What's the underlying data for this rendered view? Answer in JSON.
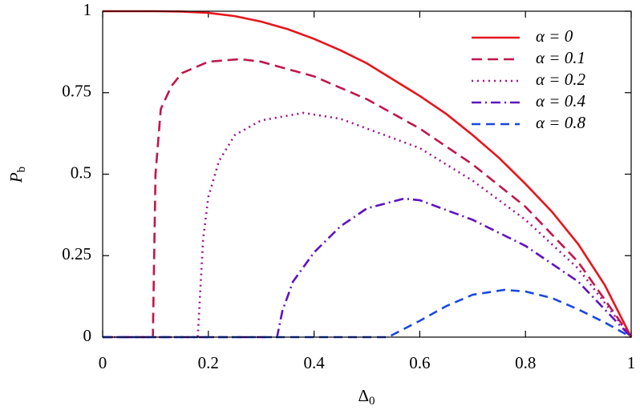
{
  "chart_data": {
    "type": "line",
    "xlabel": {
      "base": "Δ",
      "subscript": "0"
    },
    "ylabel": {
      "base": "P",
      "subscript": "b"
    },
    "xlim": [
      0,
      1
    ],
    "ylim": [
      0,
      1
    ],
    "xticks": [
      0,
      0.2,
      0.4,
      0.6,
      0.8,
      1
    ],
    "yticks": [
      0,
      0.25,
      0.5,
      0.75,
      1
    ],
    "legend": "top-right",
    "series": [
      {
        "name": "α = 0",
        "color": "#e8141c",
        "dash": "solid",
        "x": [
          0,
          0.05,
          0.1,
          0.15,
          0.2,
          0.25,
          0.3,
          0.35,
          0.4,
          0.45,
          0.5,
          0.55,
          0.6,
          0.65,
          0.7,
          0.75,
          0.8,
          0.85,
          0.9,
          0.95,
          1
        ],
        "values": [
          1,
          1,
          1,
          0.999,
          0.995,
          0.985,
          0.968,
          0.945,
          0.915,
          0.88,
          0.84,
          0.79,
          0.74,
          0.685,
          0.62,
          0.55,
          0.47,
          0.385,
          0.285,
          0.16,
          0
        ]
      },
      {
        "name": "α = 0.1",
        "color": "#c0164a",
        "dash": "long-dash",
        "x": [
          0,
          0.095,
          0.097,
          0.1,
          0.11,
          0.13,
          0.15,
          0.2,
          0.26,
          0.3,
          0.4,
          0.5,
          0.6,
          0.7,
          0.8,
          0.9,
          1
        ],
        "values": [
          0,
          0,
          0.2,
          0.5,
          0.7,
          0.77,
          0.81,
          0.845,
          0.853,
          0.845,
          0.8,
          0.73,
          0.64,
          0.53,
          0.4,
          0.23,
          0
        ]
      },
      {
        "name": "α = 0.2",
        "color": "#a0148c",
        "dash": "dot",
        "x": [
          0,
          0.18,
          0.185,
          0.19,
          0.2,
          0.22,
          0.25,
          0.3,
          0.38,
          0.45,
          0.5,
          0.6,
          0.7,
          0.8,
          0.9,
          1
        ],
        "values": [
          0,
          0,
          0.15,
          0.3,
          0.43,
          0.54,
          0.62,
          0.665,
          0.688,
          0.67,
          0.64,
          0.58,
          0.48,
          0.36,
          0.21,
          0
        ]
      },
      {
        "name": "α = 0.4",
        "color": "#6012c0",
        "dash": "dash-dot",
        "x": [
          0,
          0.33,
          0.34,
          0.36,
          0.4,
          0.45,
          0.5,
          0.57,
          0.6,
          0.7,
          0.8,
          0.9,
          1
        ],
        "values": [
          0,
          0,
          0.08,
          0.17,
          0.26,
          0.34,
          0.395,
          0.425,
          0.42,
          0.36,
          0.28,
          0.17,
          0
        ]
      },
      {
        "name": "α = 0.8",
        "color": "#1848e0",
        "dash": "dash",
        "x": [
          0,
          0.54,
          0.6,
          0.65,
          0.7,
          0.76,
          0.8,
          0.85,
          0.9,
          0.95,
          1
        ],
        "values": [
          0,
          0,
          0.05,
          0.095,
          0.13,
          0.145,
          0.14,
          0.12,
          0.085,
          0.045,
          0
        ]
      }
    ]
  }
}
